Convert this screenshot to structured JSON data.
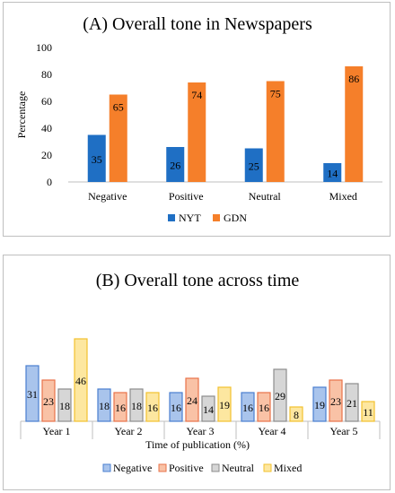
{
  "chart_data": [
    {
      "type": "bar",
      "title": "(A) Overall tone in Newspapers",
      "xlabel": "",
      "ylabel": "Percentage",
      "ylim": [
        0,
        100
      ],
      "yticks": [
        0,
        20,
        40,
        60,
        80,
        100
      ],
      "categories": [
        "Negative",
        "Positive",
        "Neutral",
        "Mixed"
      ],
      "series": [
        {
          "name": "NYT",
          "values": [
            35,
            26,
            25,
            14
          ],
          "color": "#1f6fc4"
        },
        {
          "name": "GDN",
          "values": [
            65,
            74,
            75,
            86
          ],
          "color": "#f57f2a"
        }
      ],
      "legend_position": "bottom",
      "grid": false
    },
    {
      "type": "bar",
      "title": "(B) Overall tone across time",
      "xlabel": "Time of publication (%)",
      "ylabel": "",
      "ylim": [
        0,
        50
      ],
      "categories": [
        "Year 1",
        "Year 2",
        "Year 3",
        "Year 4",
        "Year 5"
      ],
      "series": [
        {
          "name": "Negative",
          "values": [
            31,
            18,
            16,
            16,
            19
          ],
          "color": "#a9c4ec",
          "stroke": "#4a7fd0"
        },
        {
          "name": "Positive",
          "values": [
            23,
            16,
            24,
            16,
            23
          ],
          "color": "#f9c2a6",
          "stroke": "#e8734a"
        },
        {
          "name": "Neutral",
          "values": [
            18,
            18,
            14,
            29,
            21
          ],
          "color": "#d6d6d6",
          "stroke": "#8c8c8c"
        },
        {
          "name": "Mixed",
          "values": [
            46,
            16,
            19,
            8,
            11
          ],
          "color": "#fde7a0",
          "stroke": "#f2c12e"
        }
      ],
      "legend_position": "bottom",
      "grid": false
    }
  ]
}
